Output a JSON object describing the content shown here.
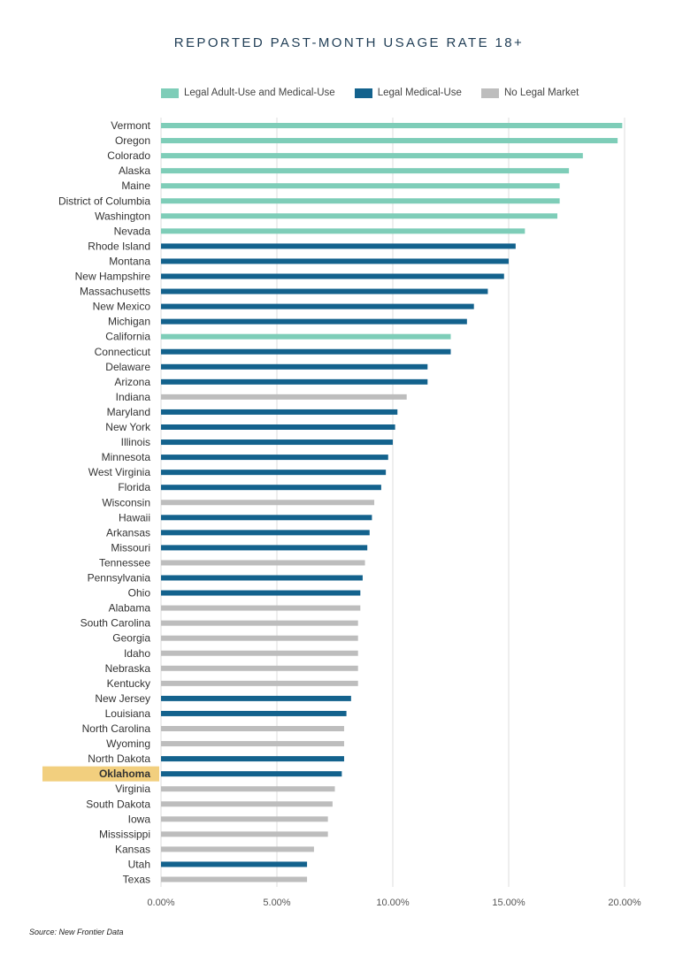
{
  "chart_data": {
    "type": "bar",
    "orientation": "horizontal",
    "title": "REPORTED PAST-MONTH USAGE RATE 18+",
    "source": "Source: New Frontier Data",
    "xlim": [
      0,
      0.2
    ],
    "xticks": [
      {
        "value": 0.0,
        "label": "0.00%"
      },
      {
        "value": 0.05,
        "label": "5.00%"
      },
      {
        "value": 0.1,
        "label": "10.00%"
      },
      {
        "value": 0.15,
        "label": "15.00%"
      },
      {
        "value": 0.2,
        "label": "20.00%"
      }
    ],
    "grid": true,
    "legend_position": "top",
    "legend": [
      {
        "key": "adult",
        "name": "Legal Adult-Use and Medical-Use",
        "color": "#7ecdb8"
      },
      {
        "key": "medical",
        "name": "Legal Medical-Use",
        "color": "#13628d"
      },
      {
        "key": "none",
        "name": "No Legal Market",
        "color": "#bdbdbd"
      }
    ],
    "highlight": {
      "category": "Oklahoma",
      "color": "#f2cf7e"
    },
    "categories": [
      {
        "name": "Vermont",
        "value": 0.199,
        "group": "adult"
      },
      {
        "name": "Oregon",
        "value": 0.197,
        "group": "adult"
      },
      {
        "name": "Colorado",
        "value": 0.182,
        "group": "adult"
      },
      {
        "name": "Alaska",
        "value": 0.176,
        "group": "adult"
      },
      {
        "name": "Maine",
        "value": 0.172,
        "group": "adult"
      },
      {
        "name": "District of Columbia",
        "value": 0.172,
        "group": "adult"
      },
      {
        "name": "Washington",
        "value": 0.171,
        "group": "adult"
      },
      {
        "name": "Nevada",
        "value": 0.157,
        "group": "adult"
      },
      {
        "name": "Rhode Island",
        "value": 0.153,
        "group": "medical"
      },
      {
        "name": "Montana",
        "value": 0.15,
        "group": "medical"
      },
      {
        "name": "New Hampshire",
        "value": 0.148,
        "group": "medical"
      },
      {
        "name": "Massachusetts",
        "value": 0.141,
        "group": "medical"
      },
      {
        "name": "New Mexico",
        "value": 0.135,
        "group": "medical"
      },
      {
        "name": "Michigan",
        "value": 0.132,
        "group": "medical"
      },
      {
        "name": "California",
        "value": 0.125,
        "group": "adult"
      },
      {
        "name": "Connecticut",
        "value": 0.125,
        "group": "medical"
      },
      {
        "name": "Delaware",
        "value": 0.115,
        "group": "medical"
      },
      {
        "name": "Arizona",
        "value": 0.115,
        "group": "medical"
      },
      {
        "name": "Indiana",
        "value": 0.106,
        "group": "none"
      },
      {
        "name": "Maryland",
        "value": 0.102,
        "group": "medical"
      },
      {
        "name": "New York",
        "value": 0.101,
        "group": "medical"
      },
      {
        "name": "Illinois",
        "value": 0.1,
        "group": "medical"
      },
      {
        "name": "Minnesota",
        "value": 0.098,
        "group": "medical"
      },
      {
        "name": "West Virginia",
        "value": 0.097,
        "group": "medical"
      },
      {
        "name": "Florida",
        "value": 0.095,
        "group": "medical"
      },
      {
        "name": "Wisconsin",
        "value": 0.092,
        "group": "none"
      },
      {
        "name": "Hawaii",
        "value": 0.091,
        "group": "medical"
      },
      {
        "name": "Arkansas",
        "value": 0.09,
        "group": "medical"
      },
      {
        "name": "Missouri",
        "value": 0.089,
        "group": "medical"
      },
      {
        "name": "Tennessee",
        "value": 0.088,
        "group": "none"
      },
      {
        "name": "Pennsylvania",
        "value": 0.087,
        "group": "medical"
      },
      {
        "name": "Ohio",
        "value": 0.086,
        "group": "medical"
      },
      {
        "name": "Alabama",
        "value": 0.086,
        "group": "none"
      },
      {
        "name": "South Carolina",
        "value": 0.085,
        "group": "none"
      },
      {
        "name": "Georgia",
        "value": 0.085,
        "group": "none"
      },
      {
        "name": "Idaho",
        "value": 0.085,
        "group": "none"
      },
      {
        "name": "Nebraska",
        "value": 0.085,
        "group": "none"
      },
      {
        "name": "Kentucky",
        "value": 0.085,
        "group": "none"
      },
      {
        "name": "New Jersey",
        "value": 0.082,
        "group": "medical"
      },
      {
        "name": "Louisiana",
        "value": 0.08,
        "group": "medical"
      },
      {
        "name": "North Carolina",
        "value": 0.079,
        "group": "none"
      },
      {
        "name": "Wyoming",
        "value": 0.079,
        "group": "none"
      },
      {
        "name": "North Dakota",
        "value": 0.079,
        "group": "medical"
      },
      {
        "name": "Oklahoma",
        "value": 0.078,
        "group": "medical"
      },
      {
        "name": "Virginia",
        "value": 0.075,
        "group": "none"
      },
      {
        "name": "South Dakota",
        "value": 0.074,
        "group": "none"
      },
      {
        "name": "Iowa",
        "value": 0.072,
        "group": "none"
      },
      {
        "name": "Mississippi",
        "value": 0.072,
        "group": "none"
      },
      {
        "name": "Kansas",
        "value": 0.066,
        "group": "none"
      },
      {
        "name": "Utah",
        "value": 0.063,
        "group": "medical"
      },
      {
        "name": "Texas",
        "value": 0.063,
        "group": "none"
      }
    ]
  }
}
